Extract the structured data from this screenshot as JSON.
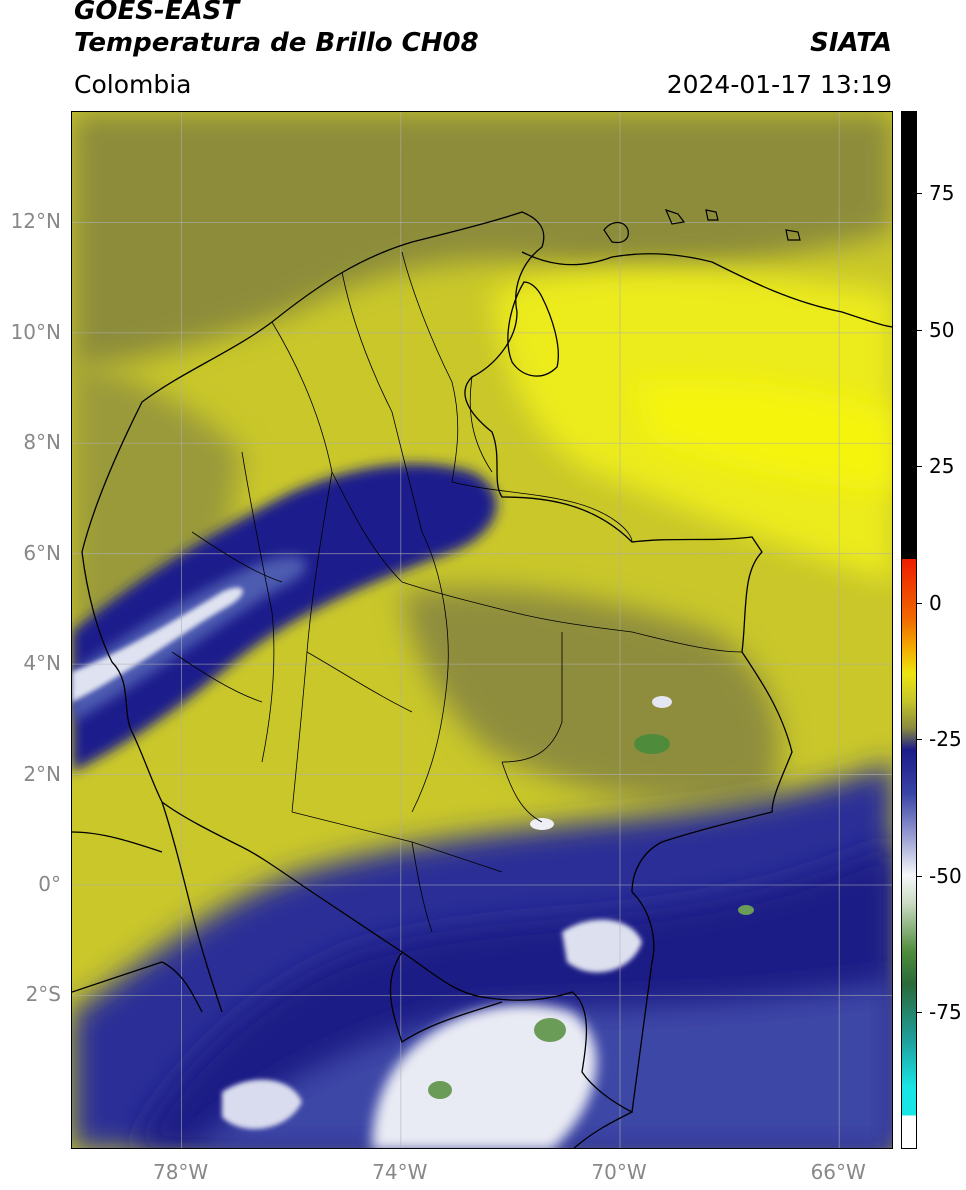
{
  "header": {
    "satellite": "GOES-EAST",
    "product": "Temperatura de Brillo CH08",
    "brand": "SIATA",
    "region": "Colombia",
    "timestamp": "2024-01-17 13:19"
  },
  "map": {
    "extent": {
      "lon_min": -80.0,
      "lon_max": -65.0,
      "lat_min": -4.8,
      "lat_max": 14.0
    },
    "lat_ticks": [
      {
        "value": 12,
        "label": "12°N"
      },
      {
        "value": 10,
        "label": "10°N"
      },
      {
        "value": 8,
        "label": "8°N"
      },
      {
        "value": 6,
        "label": "6°N"
      },
      {
        "value": 4,
        "label": "4°N"
      },
      {
        "value": 2,
        "label": "2°N"
      },
      {
        "value": 0,
        "label": "0°"
      },
      {
        "value": -2,
        "label": "2°S"
      }
    ],
    "lon_ticks": [
      {
        "value": -78,
        "label": "78°W"
      },
      {
        "value": -74,
        "label": "74°W"
      },
      {
        "value": -70,
        "label": "70°W"
      },
      {
        "value": -66,
        "label": "66°W"
      }
    ],
    "colors": {
      "warm_yellow": "#e8e61a",
      "olive": "#8a8a34",
      "cold_blue": "#1d1f8c",
      "mid_blue": "#4e5bb0",
      "very_cold_white": "#eef0f5",
      "coldest_green": "#4e8c3c",
      "border": "#000000",
      "grid": "#b0b0b0"
    }
  },
  "colorbar": {
    "unit_range": [
      -100,
      90
    ],
    "ticks": [
      {
        "value": 75,
        "label": "75"
      },
      {
        "value": 50,
        "label": "50"
      },
      {
        "value": 25,
        "label": "25"
      },
      {
        "value": 0,
        "label": "0"
      },
      {
        "value": -25,
        "label": "-25"
      },
      {
        "value": -50,
        "label": "-50"
      },
      {
        "value": -75,
        "label": "-75"
      }
    ]
  }
}
